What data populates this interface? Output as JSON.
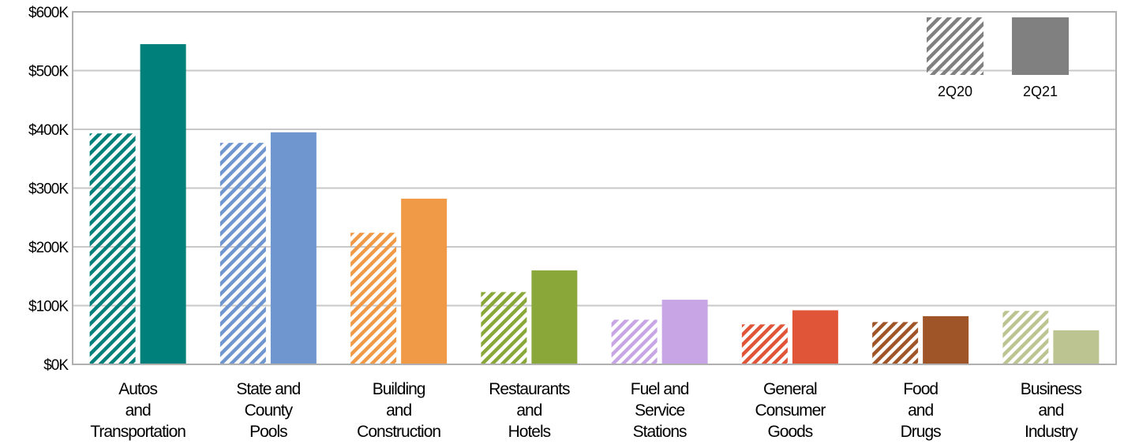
{
  "chart_data": {
    "type": "bar",
    "categories": [
      [
        "Autos",
        "and",
        "Transportation"
      ],
      [
        "State and",
        "County",
        "Pools"
      ],
      [
        "Building",
        "and",
        "Construction"
      ],
      [
        "Restaurants",
        "and",
        "Hotels"
      ],
      [
        "Fuel and",
        "Service",
        "Stations"
      ],
      [
        "General",
        "Consumer",
        "Goods"
      ],
      [
        "Food",
        "and",
        "Drugs"
      ],
      [
        "Business",
        "and",
        "Industry"
      ]
    ],
    "series": [
      {
        "name": "2Q20",
        "style": "hatched",
        "values": [
          393,
          377,
          224,
          123,
          76,
          68,
          72,
          91
        ]
      },
      {
        "name": "2Q21",
        "style": "solid",
        "values": [
          545,
          395,
          282,
          160,
          110,
          92,
          82,
          58
        ]
      }
    ],
    "category_colors": [
      "#00807a",
      "#7096d0",
      "#f09a48",
      "#8aa83a",
      "#c8a6e6",
      "#e05538",
      "#a05528",
      "#bcc592"
    ],
    "legend_color": "#808080",
    "ylim": [
      0,
      600
    ],
    "yticks": [
      0,
      100,
      200,
      300,
      400,
      500,
      600
    ],
    "ytick_labels": [
      "$0K",
      "$100K",
      "$200K",
      "$300K",
      "$400K",
      "$500K",
      "$600K"
    ],
    "grid": true,
    "legend_position": "top-right"
  }
}
